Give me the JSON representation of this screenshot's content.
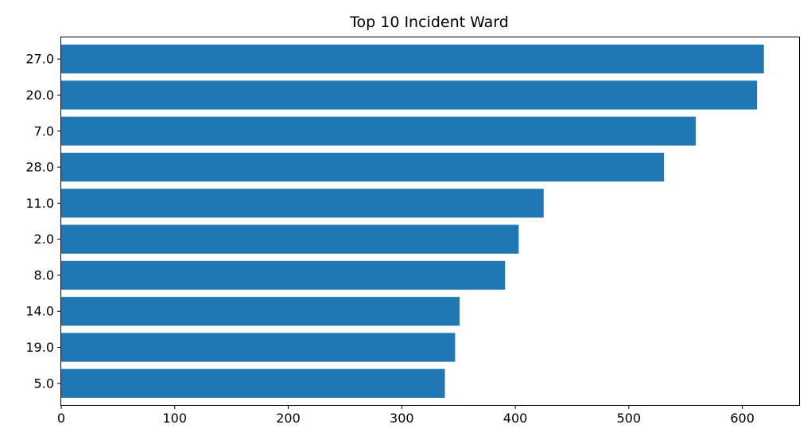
{
  "chart_data": {
    "type": "bar",
    "orientation": "horizontal",
    "title": "Top 10 Incident Ward",
    "xlabel": "",
    "ylabel": "",
    "categories": [
      "27.0",
      "20.0",
      "7.0",
      "28.0",
      "11.0",
      "2.0",
      "8.0",
      "14.0",
      "19.0",
      "5.0"
    ],
    "values": [
      619,
      613,
      559,
      531,
      425,
      403,
      391,
      351,
      347,
      338
    ],
    "xlim": [
      0,
      650
    ],
    "xticks": [
      0,
      100,
      200,
      300,
      400,
      500,
      600
    ],
    "xtick_labels": [
      "0",
      "100",
      "200",
      "300",
      "400",
      "500",
      "600"
    ],
    "bar_color": "#1f77b4",
    "grid": false,
    "legend": "none"
  }
}
